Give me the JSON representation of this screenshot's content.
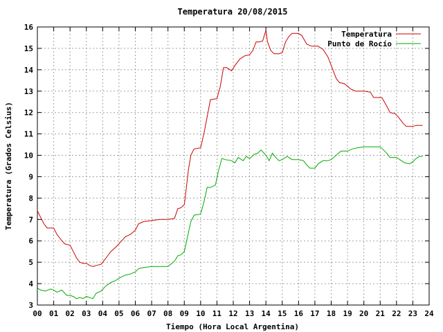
{
  "chart_data": {
    "type": "line",
    "title": "Temperatura 20/08/2015",
    "xlabel": "Tiempo (Hora Local Argentina)",
    "ylabel": "Temperatura (Grados Celsius)",
    "xlim": [
      0,
      24
    ],
    "ylim": [
      3,
      16
    ],
    "x_ticks": [
      "00",
      "01",
      "02",
      "03",
      "04",
      "05",
      "06",
      "07",
      "08",
      "09",
      "10",
      "11",
      "12",
      "13",
      "14",
      "15",
      "16",
      "17",
      "18",
      "19",
      "20",
      "21",
      "22",
      "23",
      "24"
    ],
    "y_ticks": [
      3,
      4,
      5,
      6,
      7,
      8,
      9,
      10,
      11,
      12,
      13,
      14,
      15,
      16
    ],
    "grid": true,
    "legend_position": "top-right",
    "series": [
      {
        "name": "Temperatura",
        "color": "#cc0000",
        "points": [
          [
            0.0,
            7.4
          ],
          [
            0.2,
            7.1
          ],
          [
            0.4,
            6.8
          ],
          [
            0.6,
            6.6
          ],
          [
            1.0,
            6.6
          ],
          [
            1.2,
            6.3
          ],
          [
            1.5,
            6.0
          ],
          [
            1.7,
            5.85
          ],
          [
            2.0,
            5.8
          ],
          [
            2.2,
            5.5
          ],
          [
            2.4,
            5.2
          ],
          [
            2.6,
            5.0
          ],
          [
            2.8,
            4.95
          ],
          [
            3.0,
            4.95
          ],
          [
            3.2,
            4.85
          ],
          [
            3.4,
            4.8
          ],
          [
            3.6,
            4.85
          ],
          [
            3.9,
            4.9
          ],
          [
            4.2,
            5.2
          ],
          [
            4.5,
            5.5
          ],
          [
            4.8,
            5.7
          ],
          [
            5.1,
            5.95
          ],
          [
            5.4,
            6.2
          ],
          [
            5.7,
            6.3
          ],
          [
            6.0,
            6.5
          ],
          [
            6.2,
            6.8
          ],
          [
            6.5,
            6.9
          ],
          [
            7.0,
            6.95
          ],
          [
            7.5,
            7.0
          ],
          [
            8.0,
            7.0
          ],
          [
            8.4,
            7.05
          ],
          [
            8.6,
            7.5
          ],
          [
            8.8,
            7.55
          ],
          [
            9.0,
            7.7
          ],
          [
            9.1,
            8.3
          ],
          [
            9.25,
            9.3
          ],
          [
            9.4,
            10.0
          ],
          [
            9.6,
            10.3
          ],
          [
            10.0,
            10.35
          ],
          [
            10.2,
            11.0
          ],
          [
            10.4,
            11.8
          ],
          [
            10.6,
            12.6
          ],
          [
            11.0,
            12.65
          ],
          [
            11.2,
            13.2
          ],
          [
            11.4,
            14.1
          ],
          [
            11.6,
            14.1
          ],
          [
            11.9,
            13.95
          ],
          [
            12.1,
            14.2
          ],
          [
            12.4,
            14.5
          ],
          [
            12.7,
            14.65
          ],
          [
            13.0,
            14.7
          ],
          [
            13.2,
            14.9
          ],
          [
            13.4,
            15.3
          ],
          [
            13.6,
            15.3
          ],
          [
            13.8,
            15.35
          ],
          [
            14.0,
            15.85
          ],
          [
            14.1,
            15.3
          ],
          [
            14.3,
            14.9
          ],
          [
            14.5,
            14.75
          ],
          [
            14.8,
            14.75
          ],
          [
            15.0,
            14.8
          ],
          [
            15.2,
            15.3
          ],
          [
            15.4,
            15.55
          ],
          [
            15.6,
            15.7
          ],
          [
            16.0,
            15.7
          ],
          [
            16.2,
            15.6
          ],
          [
            16.5,
            15.2
          ],
          [
            16.8,
            15.1
          ],
          [
            17.2,
            15.1
          ],
          [
            17.5,
            14.95
          ],
          [
            17.8,
            14.6
          ],
          [
            18.1,
            14.0
          ],
          [
            18.3,
            13.6
          ],
          [
            18.5,
            13.4
          ],
          [
            18.8,
            13.35
          ],
          [
            19.2,
            13.1
          ],
          [
            19.5,
            13.0
          ],
          [
            20.0,
            13.0
          ],
          [
            20.4,
            12.95
          ],
          [
            20.6,
            12.7
          ],
          [
            21.1,
            12.7
          ],
          [
            21.4,
            12.3
          ],
          [
            21.6,
            12.0
          ],
          [
            21.9,
            11.95
          ],
          [
            22.1,
            11.8
          ],
          [
            22.4,
            11.5
          ],
          [
            22.6,
            11.35
          ],
          [
            23.0,
            11.35
          ],
          [
            23.2,
            11.4
          ],
          [
            23.6,
            11.4
          ]
        ]
      },
      {
        "name": "Punto de Rocío",
        "color": "#00aa00",
        "points": [
          [
            0.0,
            3.8
          ],
          [
            0.2,
            3.7
          ],
          [
            0.5,
            3.65
          ],
          [
            0.8,
            3.75
          ],
          [
            1.0,
            3.7
          ],
          [
            1.2,
            3.6
          ],
          [
            1.5,
            3.7
          ],
          [
            1.8,
            3.45
          ],
          [
            2.0,
            3.45
          ],
          [
            2.2,
            3.4
          ],
          [
            2.4,
            3.3
          ],
          [
            2.6,
            3.35
          ],
          [
            2.8,
            3.3
          ],
          [
            3.0,
            3.4
          ],
          [
            3.2,
            3.35
          ],
          [
            3.4,
            3.3
          ],
          [
            3.6,
            3.55
          ],
          [
            3.9,
            3.65
          ],
          [
            4.2,
            3.9
          ],
          [
            4.5,
            4.05
          ],
          [
            4.8,
            4.15
          ],
          [
            5.1,
            4.3
          ],
          [
            5.4,
            4.4
          ],
          [
            5.7,
            4.45
          ],
          [
            6.0,
            4.55
          ],
          [
            6.2,
            4.7
          ],
          [
            6.5,
            4.75
          ],
          [
            7.0,
            4.8
          ],
          [
            7.5,
            4.8
          ],
          [
            8.0,
            4.8
          ],
          [
            8.4,
            5.05
          ],
          [
            8.6,
            5.3
          ],
          [
            8.8,
            5.35
          ],
          [
            9.0,
            5.5
          ],
          [
            9.2,
            6.2
          ],
          [
            9.4,
            6.9
          ],
          [
            9.6,
            7.2
          ],
          [
            10.0,
            7.25
          ],
          [
            10.2,
            7.8
          ],
          [
            10.4,
            8.5
          ],
          [
            10.6,
            8.5
          ],
          [
            10.9,
            8.6
          ],
          [
            11.1,
            9.3
          ],
          [
            11.3,
            9.85
          ],
          [
            11.5,
            9.8
          ],
          [
            11.9,
            9.75
          ],
          [
            12.1,
            9.65
          ],
          [
            12.3,
            9.9
          ],
          [
            12.6,
            9.75
          ],
          [
            12.8,
            9.95
          ],
          [
            13.0,
            9.85
          ],
          [
            13.3,
            10.05
          ],
          [
            13.5,
            10.1
          ],
          [
            13.7,
            10.25
          ],
          [
            14.0,
            10.0
          ],
          [
            14.2,
            9.75
          ],
          [
            14.4,
            10.1
          ],
          [
            14.6,
            9.9
          ],
          [
            14.8,
            9.75
          ],
          [
            15.0,
            9.8
          ],
          [
            15.3,
            9.95
          ],
          [
            15.6,
            9.8
          ],
          [
            16.0,
            9.8
          ],
          [
            16.3,
            9.75
          ],
          [
            16.5,
            9.55
          ],
          [
            16.7,
            9.4
          ],
          [
            17.0,
            9.4
          ],
          [
            17.2,
            9.6
          ],
          [
            17.5,
            9.75
          ],
          [
            17.8,
            9.75
          ],
          [
            18.0,
            9.8
          ],
          [
            18.3,
            10.0
          ],
          [
            18.6,
            10.2
          ],
          [
            19.0,
            10.2
          ],
          [
            19.3,
            10.3
          ],
          [
            19.6,
            10.35
          ],
          [
            20.0,
            10.4
          ],
          [
            20.5,
            10.4
          ],
          [
            21.0,
            10.4
          ],
          [
            21.4,
            10.1
          ],
          [
            21.6,
            9.9
          ],
          [
            22.0,
            9.9
          ],
          [
            22.2,
            9.8
          ],
          [
            22.5,
            9.65
          ],
          [
            22.8,
            9.6
          ],
          [
            23.0,
            9.7
          ],
          [
            23.2,
            9.85
          ],
          [
            23.4,
            9.95
          ],
          [
            23.6,
            9.95
          ]
        ]
      }
    ]
  }
}
